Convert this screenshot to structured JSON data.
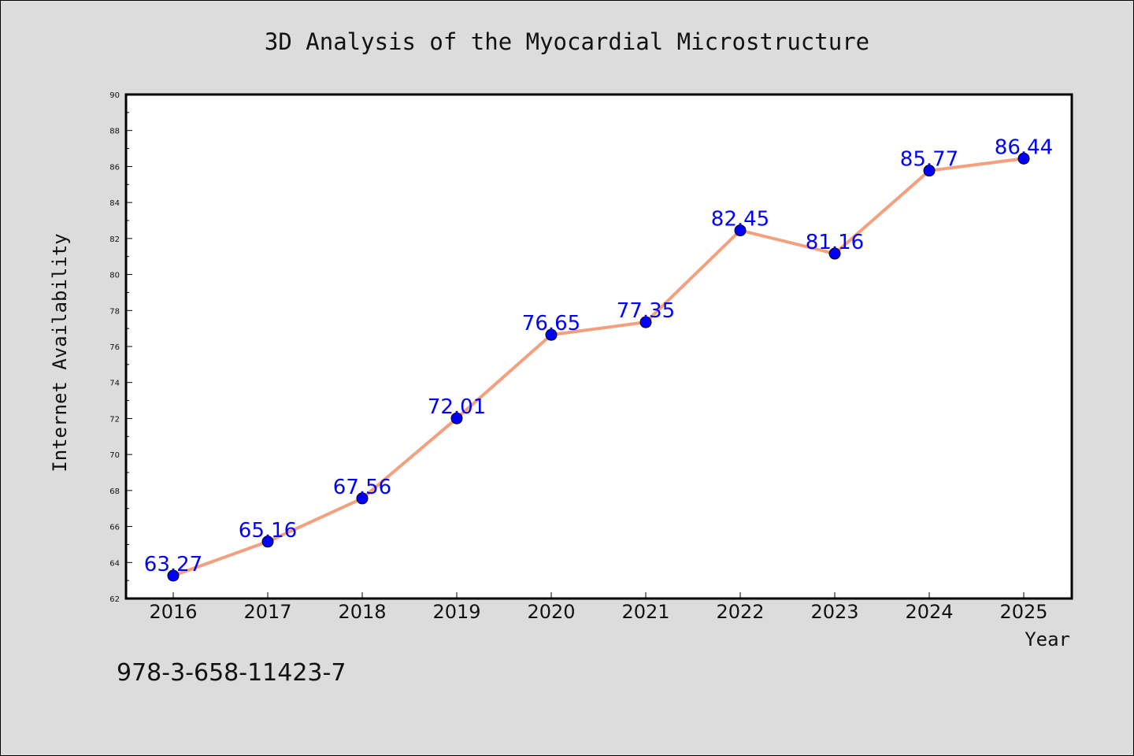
{
  "chart_data": {
    "type": "line",
    "title": "3D Analysis of the Myocardial Microstructure",
    "xlabel": "Year",
    "ylabel": "Internet Availability",
    "categories": [
      "2016",
      "2017",
      "2018",
      "2019",
      "2020",
      "2021",
      "2022",
      "2023",
      "2024",
      "2025"
    ],
    "values": [
      63.27,
      65.16,
      67.56,
      72.01,
      76.65,
      77.35,
      82.45,
      81.16,
      85.77,
      86.44
    ],
    "data_labels": [
      "63.27",
      "65.16",
      "67.56",
      "72.01",
      "76.65",
      "77.35",
      "82.45",
      "81.16",
      "85.77",
      "86.44"
    ],
    "ylim": [
      62,
      90
    ],
    "yticks": [
      "62",
      "64",
      "66",
      "68",
      "70",
      "72",
      "74",
      "76",
      "78",
      "80",
      "82",
      "84",
      "86",
      "88",
      "90"
    ],
    "grid": false,
    "legend": "none",
    "line_color": "#f4a07f",
    "marker_color": "#0000ff",
    "label_color": "#0000ff"
  },
  "footer": {
    "isbn": "978-3-658-11423-7"
  }
}
